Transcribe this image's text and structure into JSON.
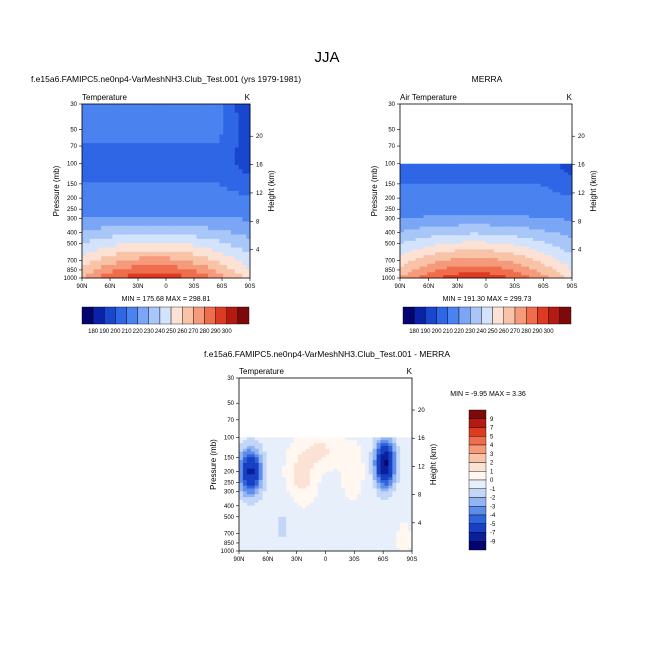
{
  "page_title": "JJA",
  "chart_data": [
    {
      "type": "heatmap",
      "title": "f.e15a6.FAMIPC5.ne0np4-VarMeshNH3.Club_Test.001 (yrs 1979-1981)",
      "variable": "Temperature",
      "units": "K",
      "ylabel": "Pressure (mb)",
      "ylabel_right": "Height (km)",
      "x_ticks": [
        "90N",
        "60N",
        "30N",
        "0",
        "30S",
        "60S",
        "90S"
      ],
      "y_ticks": [
        "30",
        "50",
        "70",
        "100",
        "150",
        "200",
        "250",
        "300",
        "400",
        "500",
        "700",
        "850",
        "1000"
      ],
      "height_ticks": [
        "20",
        "16",
        "12",
        "8",
        "4"
      ],
      "stats": "MIN = 175.68  MAX = 298.81",
      "data_top_mb": 30
    },
    {
      "type": "heatmap",
      "title": "MERRA",
      "variable": "Air Temperature",
      "units": "K",
      "ylabel": "Pressure (mb)",
      "ylabel_right": "Height (km)",
      "x_ticks": [
        "90N",
        "60N",
        "30N",
        "0",
        "30S",
        "60S",
        "90S"
      ],
      "y_ticks": [
        "30",
        "50",
        "70",
        "100",
        "150",
        "200",
        "250",
        "300",
        "400",
        "500",
        "700",
        "850",
        "1000"
      ],
      "height_ticks": [
        "20",
        "16",
        "12",
        "8",
        "4"
      ],
      "stats": "MIN = 191.30  MAX = 299.73",
      "data_top_mb": 100
    },
    {
      "type": "heatmap",
      "title": "f.e15a6.FAMIPC5.ne0np4-VarMeshNH3.Club_Test.001 - MERRA",
      "variable": "Temperature",
      "units": "K",
      "ylabel": "Pressure (mb)",
      "ylabel_right": "Height (km)",
      "x_ticks": [
        "90N",
        "60N",
        "30N",
        "0",
        "30S",
        "60S",
        "90S"
      ],
      "y_ticks": [
        "30",
        "50",
        "70",
        "100",
        "150",
        "200",
        "250",
        "300",
        "400",
        "500",
        "700",
        "850",
        "1000"
      ],
      "height_ticks": [
        "20",
        "16",
        "12",
        "8",
        "4"
      ],
      "stats": "MIN =  -9.95  MAX =   3.36",
      "data_top_mb": 100
    }
  ],
  "colorbars": {
    "absolute": {
      "labels": [
        "180",
        "190",
        "200",
        "210",
        "220",
        "230",
        "240",
        "250",
        "260",
        "270",
        "280",
        "290",
        "300"
      ],
      "colors": [
        "#020470",
        "#0a22a8",
        "#1846cf",
        "#2f66e6",
        "#4a82f0",
        "#7aa6f5",
        "#a9c6f8",
        "#d3e3fb",
        "#fbe2d5",
        "#f8c3a7",
        "#f59b7b",
        "#ef6d4c",
        "#dd3a22",
        "#b51a12",
        "#7d0a0a"
      ]
    },
    "difference": {
      "labels": [
        "9",
        "7",
        "5",
        "4",
        "3",
        "2",
        "1",
        "0",
        "-1",
        "-2",
        "-3",
        "-4",
        "-5",
        "-7",
        "-9"
      ],
      "colors": [
        "#7d0a0a",
        "#b51a12",
        "#dd3a22",
        "#ef6d4c",
        "#f59b7b",
        "#f8c3a7",
        "#fbe2d5",
        "#fff7f0",
        "#e7effb",
        "#c3d6f7",
        "#93b4f2",
        "#5e8cea",
        "#3064dc",
        "#1840c2",
        "#0a1f9c",
        "#020470"
      ]
    }
  }
}
